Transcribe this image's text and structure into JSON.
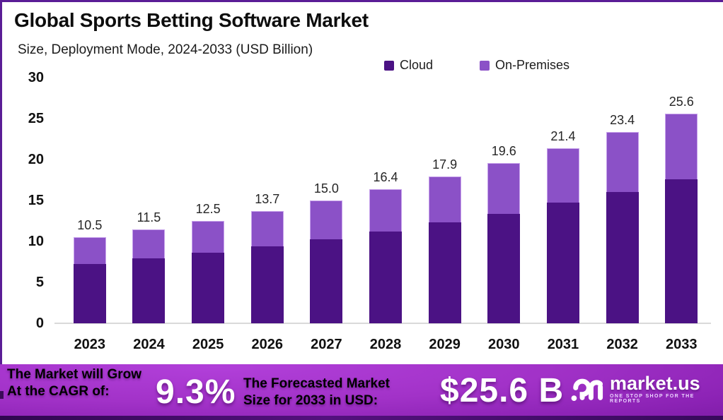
{
  "header": {
    "title": "Global Sports Betting Software Market",
    "subtitle": "Size, Deployment Mode, 2024-2033 (USD Billion)"
  },
  "chart_data": {
    "type": "bar",
    "stacked": true,
    "title": "Global Sports Betting Software Market Size, Deployment Mode, 2024-2033 (USD Billion)",
    "categories": [
      "2023",
      "2024",
      "2025",
      "2026",
      "2027",
      "2028",
      "2029",
      "2030",
      "2031",
      "2032",
      "2033"
    ],
    "series": [
      {
        "name": "Cloud",
        "color": "#4b1284",
        "values": [
          7.2,
          7.9,
          8.6,
          9.4,
          10.3,
          11.2,
          12.3,
          13.4,
          14.7,
          16.0,
          17.6
        ]
      },
      {
        "name": "On-Premises",
        "color": "#8b51c7",
        "values": [
          3.3,
          3.6,
          3.9,
          4.3,
          4.7,
          5.2,
          5.6,
          6.2,
          6.7,
          7.4,
          8.0
        ]
      }
    ],
    "totals": [
      10.5,
      11.5,
      12.5,
      13.7,
      15.0,
      16.4,
      17.9,
      19.6,
      21.4,
      23.4,
      25.6
    ],
    "total_labels": [
      "10.5",
      "11.5",
      "12.5",
      "13.7",
      "15.0",
      "16.4",
      "17.9",
      "19.6",
      "21.4",
      "23.4",
      "25.6"
    ],
    "xlabel": "",
    "ylabel": "",
    "ylim": [
      0,
      30
    ],
    "yticks": [
      0,
      5,
      10,
      15,
      20,
      25,
      30
    ],
    "grid": false,
    "legend_position": "top-right"
  },
  "footer": {
    "left_line1": "The Market will Grow",
    "left_line2": "At the CAGR of:",
    "cagr_value": "9.3%",
    "mid_line1": "The Forecasted Market",
    "mid_line2": "Size for 2033 in USD:",
    "forecast_value": "$25.6 B",
    "brand": "market.us",
    "brand_tagline": "ONE STOP SHOP FOR THE REPORTS"
  },
  "colors": {
    "cloud": "#4b1284",
    "on_premises": "#8b51c7",
    "frame_border": "#5a1d96",
    "footer_bright": "#a232c8",
    "footer_dark": "#67138f",
    "axis_text": "#111111",
    "value_label": "#262626",
    "baseline": "#d9d9d9"
  }
}
